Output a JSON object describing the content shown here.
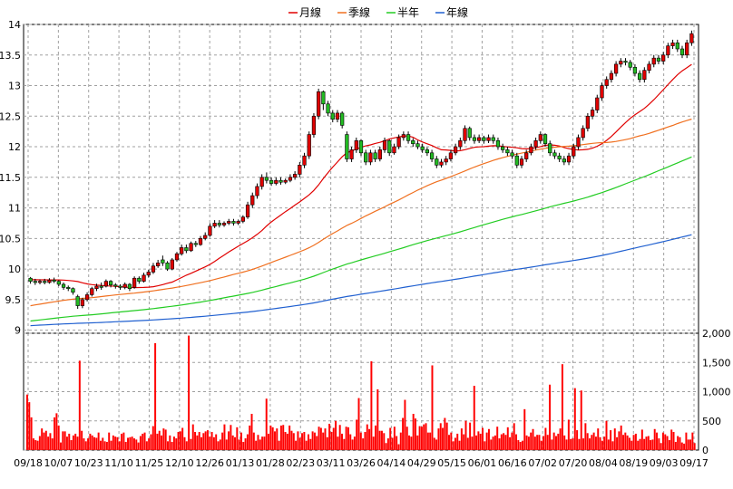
{
  "chart_data": {
    "type": "candlestick",
    "price_axis": {
      "ticks": [
        "9",
        "9.5",
        "10",
        "10.5",
        "11",
        "11.5",
        "12",
        "12.5",
        "13",
        "13.5",
        "14"
      ],
      "range": [
        8.95,
        14.0
      ]
    },
    "volume_axis": {
      "ticks": [
        "0",
        "500",
        "1,000",
        "1,500",
        "2,000"
      ],
      "range": [
        0,
        2000
      ]
    },
    "x_labels": [
      "09/18",
      "10/07",
      "10/23",
      "11/10",
      "11/25",
      "12/10",
      "12/26",
      "01/13",
      "01/28",
      "02/23",
      "03/11",
      "03/26",
      "04/14",
      "04/29",
      "05/15",
      "06/01",
      "06/16",
      "07/02",
      "07/20",
      "08/04",
      "08/19",
      "09/03",
      "09/17"
    ],
    "legend": [
      {
        "name": "月線",
        "color": "#e00000"
      },
      {
        "name": "季線",
        "color": "#f07020"
      },
      {
        "name": "半年",
        "color": "#22cc22"
      },
      {
        "name": "年線",
        "color": "#2060d0"
      }
    ],
    "colors": {
      "up": "#e00000",
      "down": "#22bb22",
      "volume": "#ff0000",
      "grid": "#a0a0a0"
    },
    "grid": true,
    "candles": [
      [
        9.85,
        9.8,
        9.87,
        9.76
      ],
      [
        9.8,
        9.78,
        9.84,
        9.74
      ],
      [
        9.78,
        9.8,
        9.83,
        9.75
      ],
      [
        9.8,
        9.78,
        9.84,
        9.75
      ],
      [
        9.78,
        9.82,
        9.85,
        9.76
      ],
      [
        9.82,
        9.8,
        9.86,
        9.77
      ],
      [
        9.8,
        9.75,
        9.82,
        9.72
      ],
      [
        9.75,
        9.7,
        9.78,
        9.66
      ],
      [
        9.7,
        9.68,
        9.73,
        9.64
      ],
      [
        9.68,
        9.62,
        9.7,
        9.58
      ],
      [
        9.55,
        9.4,
        9.58,
        9.35
      ],
      [
        9.4,
        9.5,
        9.53,
        9.36
      ],
      [
        9.5,
        9.58,
        9.62,
        9.47
      ],
      [
        9.58,
        9.68,
        9.71,
        9.55
      ],
      [
        9.68,
        9.72,
        9.76,
        9.64
      ],
      [
        9.72,
        9.7,
        9.78,
        9.66
      ],
      [
        9.72,
        9.8,
        9.83,
        9.7
      ],
      [
        9.8,
        9.74,
        9.82,
        9.7
      ],
      [
        9.74,
        9.72,
        9.77,
        9.68
      ],
      [
        9.72,
        9.7,
        9.75,
        9.66
      ],
      [
        9.7,
        9.75,
        9.78,
        9.67
      ],
      [
        9.75,
        9.68,
        9.77,
        9.64
      ],
      [
        9.7,
        9.85,
        9.88,
        9.68
      ],
      [
        9.85,
        9.8,
        9.88,
        9.76
      ],
      [
        9.8,
        9.9,
        9.94,
        9.78
      ],
      [
        9.9,
        9.95,
        9.99,
        9.86
      ],
      [
        9.95,
        10.05,
        10.1,
        9.92
      ],
      [
        10.05,
        10.1,
        10.15,
        10.02
      ],
      [
        10.15,
        10.1,
        10.22,
        10.05
      ],
      [
        10.1,
        10.0,
        10.13,
        9.97
      ],
      [
        10.0,
        10.15,
        10.18,
        9.98
      ],
      [
        10.15,
        10.25,
        10.28,
        10.12
      ],
      [
        10.25,
        10.35,
        10.4,
        10.22
      ],
      [
        10.35,
        10.3,
        10.4,
        10.26
      ],
      [
        10.3,
        10.42,
        10.45,
        10.28
      ],
      [
        10.42,
        10.4,
        10.46,
        10.36
      ],
      [
        10.4,
        10.5,
        10.54,
        10.38
      ],
      [
        10.5,
        10.55,
        10.6,
        10.47
      ],
      [
        10.55,
        10.7,
        10.75,
        10.53
      ],
      [
        10.7,
        10.75,
        10.8,
        10.67
      ],
      [
        10.75,
        10.72,
        10.8,
        10.68
      ],
      [
        10.72,
        10.75,
        10.78,
        10.69
      ],
      [
        10.75,
        10.78,
        10.82,
        10.72
      ],
      [
        10.78,
        10.75,
        10.82,
        10.71
      ],
      [
        10.75,
        10.78,
        10.81,
        10.72
      ],
      [
        10.78,
        10.85,
        10.88,
        10.75
      ],
      [
        10.85,
        11.05,
        11.1,
        10.82
      ],
      [
        11.05,
        11.2,
        11.25,
        11.0
      ],
      [
        11.2,
        11.35,
        11.4,
        11.15
      ],
      [
        11.35,
        11.5,
        11.55,
        11.3
      ],
      [
        11.5,
        11.45,
        11.58,
        11.4
      ],
      [
        11.45,
        11.4,
        11.5,
        11.36
      ],
      [
        11.4,
        11.45,
        11.5,
        11.37
      ],
      [
        11.45,
        11.42,
        11.5,
        11.38
      ],
      [
        11.42,
        11.45,
        11.48,
        11.39
      ],
      [
        11.45,
        11.5,
        11.55,
        11.42
      ],
      [
        11.5,
        11.55,
        11.6,
        11.46
      ],
      [
        11.55,
        11.7,
        11.75,
        11.5
      ],
      [
        11.7,
        11.85,
        11.9,
        11.65
      ],
      [
        11.85,
        12.2,
        12.25,
        11.8
      ],
      [
        12.2,
        12.5,
        12.55,
        12.15
      ],
      [
        12.5,
        12.9,
        12.95,
        12.45
      ],
      [
        12.9,
        12.7,
        12.92,
        12.6
      ],
      [
        12.7,
        12.55,
        12.75,
        12.5
      ],
      [
        12.55,
        12.45,
        12.6,
        12.4
      ],
      [
        12.45,
        12.55,
        12.6,
        12.4
      ],
      [
        12.55,
        12.35,
        12.58,
        12.3
      ],
      [
        12.2,
        11.8,
        12.25,
        11.75
      ],
      [
        11.8,
        11.95,
        12.0,
        11.75
      ],
      [
        11.95,
        12.1,
        12.15,
        11.9
      ],
      [
        12.1,
        11.9,
        12.12,
        11.85
      ],
      [
        11.9,
        11.75,
        11.95,
        11.7
      ],
      [
        11.75,
        11.9,
        11.95,
        11.7
      ],
      [
        11.9,
        11.8,
        11.95,
        11.75
      ],
      [
        11.8,
        11.95,
        12.0,
        11.76
      ],
      [
        11.95,
        12.1,
        12.15,
        11.9
      ],
      [
        12.1,
        11.9,
        12.12,
        11.85
      ],
      [
        11.9,
        12.0,
        12.05,
        11.87
      ],
      [
        12.0,
        12.15,
        12.2,
        11.96
      ],
      [
        12.15,
        12.2,
        12.25,
        12.1
      ],
      [
        12.2,
        12.1,
        12.25,
        12.05
      ],
      [
        12.1,
        12.05,
        12.14,
        12.0
      ],
      [
        12.05,
        12.0,
        12.1,
        11.96
      ],
      [
        12.0,
        11.95,
        12.05,
        11.9
      ],
      [
        11.95,
        11.9,
        11.99,
        11.85
      ],
      [
        11.9,
        11.8,
        11.95,
        11.75
      ],
      [
        11.8,
        11.7,
        11.85,
        11.65
      ],
      [
        11.7,
        11.75,
        11.8,
        11.66
      ],
      [
        11.75,
        11.8,
        11.85,
        11.7
      ],
      [
        11.8,
        11.9,
        11.95,
        11.76
      ],
      [
        11.9,
        12.0,
        12.05,
        11.86
      ],
      [
        12.0,
        12.1,
        12.15,
        11.95
      ],
      [
        12.1,
        12.3,
        12.35,
        12.05
      ],
      [
        12.3,
        12.15,
        12.33,
        12.1
      ],
      [
        12.15,
        12.1,
        12.2,
        12.05
      ],
      [
        12.1,
        12.15,
        12.2,
        12.06
      ],
      [
        12.15,
        12.1,
        12.18,
        12.05
      ],
      [
        12.1,
        12.15,
        12.2,
        12.06
      ],
      [
        12.15,
        12.1,
        12.2,
        12.05
      ],
      [
        12.1,
        12.0,
        12.15,
        11.95
      ],
      [
        12.0,
        11.95,
        12.05,
        11.9
      ],
      [
        11.95,
        11.9,
        12.0,
        11.85
      ],
      [
        11.9,
        11.85,
        11.95,
        11.8
      ],
      [
        11.85,
        11.7,
        11.9,
        11.65
      ],
      [
        11.7,
        11.8,
        11.85,
        11.65
      ],
      [
        11.8,
        11.9,
        11.95,
        11.75
      ],
      [
        11.9,
        12.0,
        12.05,
        11.86
      ],
      [
        12.0,
        12.1,
        12.15,
        11.95
      ],
      [
        12.1,
        12.2,
        12.25,
        12.05
      ],
      [
        12.2,
        12.05,
        12.22,
        12.0
      ],
      [
        12.05,
        11.9,
        12.1,
        11.85
      ],
      [
        11.9,
        11.85,
        11.95,
        11.8
      ],
      [
        11.85,
        11.8,
        11.9,
        11.75
      ],
      [
        11.8,
        11.75,
        11.85,
        11.7
      ],
      [
        11.75,
        11.85,
        11.9,
        11.7
      ],
      [
        11.85,
        12.0,
        12.05,
        11.8
      ],
      [
        12.0,
        12.15,
        12.2,
        11.95
      ],
      [
        12.15,
        12.3,
        12.35,
        12.1
      ],
      [
        12.3,
        12.5,
        12.55,
        12.25
      ],
      [
        12.5,
        12.6,
        12.65,
        12.45
      ],
      [
        12.6,
        12.8,
        12.85,
        12.55
      ],
      [
        12.8,
        13.0,
        13.05,
        12.75
      ],
      [
        13.0,
        13.1,
        13.15,
        12.95
      ],
      [
        13.1,
        13.2,
        13.25,
        13.05
      ],
      [
        13.2,
        13.35,
        13.4,
        13.15
      ],
      [
        13.35,
        13.4,
        13.45,
        13.3
      ],
      [
        13.4,
        13.38,
        13.45,
        13.33
      ],
      [
        13.38,
        13.3,
        13.42,
        13.25
      ],
      [
        13.3,
        13.2,
        13.35,
        13.15
      ],
      [
        13.2,
        13.1,
        13.25,
        13.05
      ],
      [
        13.1,
        13.25,
        13.3,
        13.05
      ],
      [
        13.25,
        13.35,
        13.4,
        13.2
      ],
      [
        13.35,
        13.45,
        13.5,
        13.3
      ],
      [
        13.45,
        13.4,
        13.5,
        13.35
      ],
      [
        13.4,
        13.5,
        13.55,
        13.35
      ],
      [
        13.5,
        13.65,
        13.7,
        13.45
      ],
      [
        13.65,
        13.7,
        13.75,
        13.6
      ],
      [
        13.7,
        13.6,
        13.75,
        13.55
      ],
      [
        13.6,
        13.5,
        13.65,
        13.45
      ],
      [
        13.5,
        13.7,
        13.75,
        13.45
      ],
      [
        13.7,
        13.85,
        13.9,
        13.65
      ]
    ],
    "volumes": [
      950,
      820,
      560,
      200,
      170,
      160,
      240,
      370,
      300,
      330,
      230,
      290,
      200,
      560,
      630,
      420,
      130,
      320,
      320,
      230,
      280,
      170,
      250,
      280,
      230,
      1530,
      330,
      200,
      150,
      200,
      280,
      250,
      220,
      210,
      300,
      160,
      210,
      150,
      140,
      300,
      160,
      250,
      230,
      220,
      150,
      280,
      300,
      140,
      210,
      220,
      230,
      200,
      180,
      130,
      240,
      280,
      300,
      150,
      200,
      270,
      410,
      1830,
      280,
      330,
      250,
      370,
      350,
      150,
      250,
      140,
      230,
      200,
      310,
      320,
      380,
      220,
      150,
      1960,
      190,
      440,
      310,
      250,
      310,
      220,
      290,
      320,
      340,
      230,
      310,
      220,
      270,
      150,
      180,
      300,
      440,
      180,
      320,
      430,
      250,
      220,
      390,
      180,
      300,
      140,
      200,
      270,
      420,
      620,
      300,
      160,
      260,
      180,
      230,
      230,
      880,
      280,
      420,
      390,
      320,
      370,
      160,
      420,
      430,
      310,
      280,
      420,
      330,
      290,
      160,
      320,
      210,
      290,
      310,
      160,
      270,
      190,
      320,
      300,
      240,
      400,
      380,
      300,
      370,
      220,
      450,
      310,
      380,
      500,
      230,
      430,
      280,
      190,
      400,
      390,
      270,
      180,
      230,
      520,
      890,
      300,
      200,
      310,
      440,
      360,
      1520,
      230,
      420,
      1040,
      330,
      330,
      290,
      120,
      200,
      380,
      210,
      400,
      240,
      100,
      300,
      550,
      860,
      400,
      250,
      230,
      620,
      540,
      250,
      410,
      400,
      440,
      460,
      300,
      300,
      1450,
      210,
      180,
      370,
      460,
      380,
      550,
      470,
      260,
      300,
      150,
      210,
      280,
      160,
      370,
      270,
      500,
      210,
      470,
      230,
      1100,
      250,
      320,
      280,
      380,
      150,
      300,
      360,
      180,
      230,
      250,
      400,
      200,
      270,
      290,
      260,
      390,
      220,
      300,
      460,
      270,
      170,
      140,
      160,
      700,
      250,
      230,
      300,
      360,
      230,
      260,
      260,
      160,
      240,
      380,
      260,
      1120,
      180,
      300,
      240,
      280,
      370,
      1470,
      250,
      180,
      520,
      190,
      200,
      1060,
      340,
      190,
      1020,
      200,
      460,
      290,
      200,
      260,
      300,
      230,
      370,
      220,
      160,
      230,
      500,
      180,
      340,
      150,
      370,
      220,
      320,
      420,
      260,
      300,
      250,
      210,
      160,
      260,
      280,
      160,
      190,
      350,
      190,
      230,
      240,
      170,
      180,
      360,
      300,
      200,
      120,
      300,
      270,
      240,
      170,
      350,
      310,
      140,
      240,
      220,
      130,
      110,
      300,
      180,
      180,
      300,
      120
    ]
  }
}
